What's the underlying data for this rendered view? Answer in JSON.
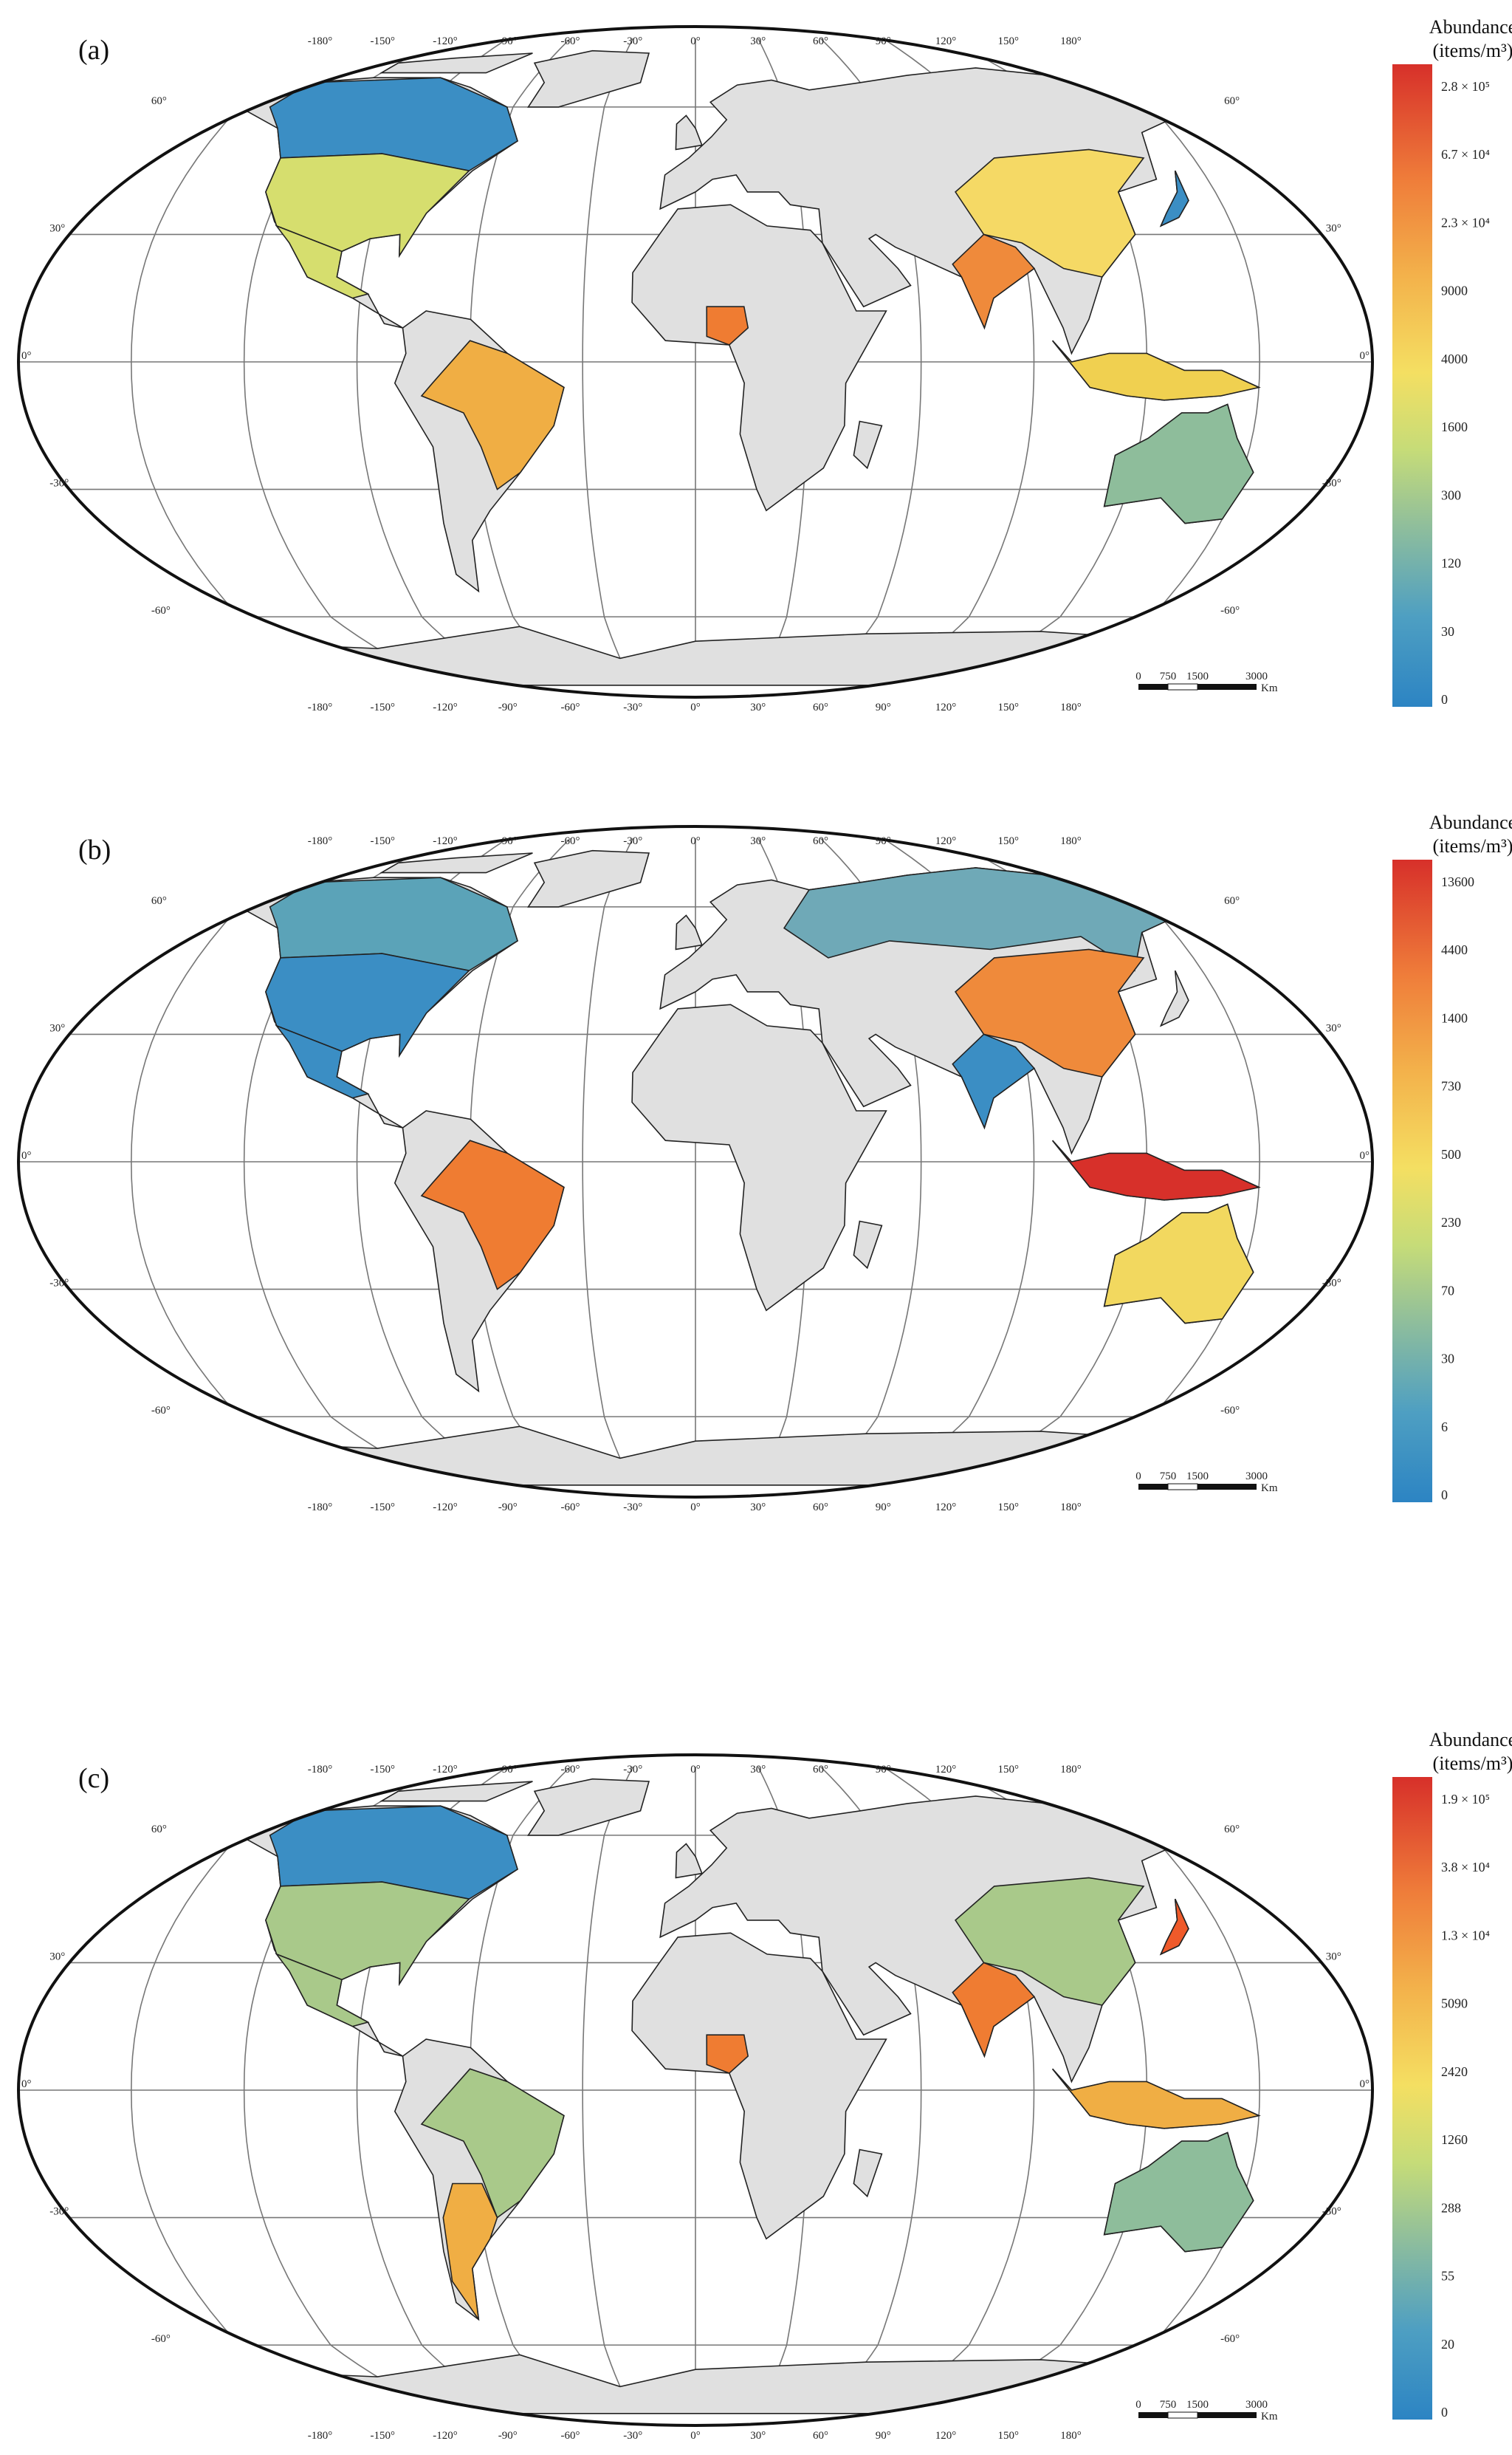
{
  "graticule": {
    "lon_labels": [
      "-180°",
      "-150°",
      "-120°",
      "-90°",
      "-60°",
      "-30°",
      "0°",
      "30°",
      "60°",
      "90°",
      "120°",
      "150°",
      "180°"
    ],
    "lat_labels": [
      "60°",
      "30°",
      "0°",
      "-30°",
      "-60°"
    ]
  },
  "scale_bar": {
    "labels": [
      "0",
      "750",
      "1500",
      "3000"
    ],
    "unit": "Km"
  },
  "panels": [
    {
      "label": "(a)",
      "legend": {
        "title": "Abundance",
        "unit": "(items/m³)",
        "ticks": [
          "2.8 × 10⁵",
          "6.7 × 10⁴",
          "2.3 × 10⁴",
          "9000",
          "4000",
          "1600",
          "300",
          "120",
          "30",
          "0"
        ]
      }
    },
    {
      "label": "(b)",
      "legend": {
        "title": "Abundance",
        "unit": "(items/m³)",
        "ticks": [
          "13600",
          "4400",
          "1400",
          "730",
          "500",
          "230",
          "70",
          "30",
          "6",
          "0"
        ]
      }
    },
    {
      "label": "(c)",
      "legend": {
        "title": "Abundance",
        "unit": "(items/m³)",
        "ticks": [
          "1.9 × 10⁵",
          "3.8 × 10⁴",
          "1.3 × 10⁴",
          "5090",
          "2420",
          "1260",
          "288",
          "55",
          "20",
          "0"
        ]
      }
    }
  ]
}
